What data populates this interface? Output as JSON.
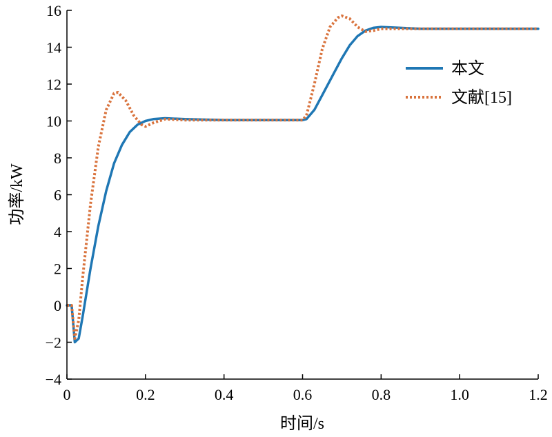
{
  "chart_data": {
    "type": "line",
    "title": "",
    "xlabel": "时间/s",
    "ylabel": "功率/kW",
    "xlim": [
      0,
      1.2
    ],
    "ylim": [
      -4,
      16
    ],
    "x_ticks": [
      0,
      0.2,
      0.4,
      0.6,
      0.8,
      1.0,
      1.2
    ],
    "x_tick_labels": [
      "0",
      "0.2",
      "0.4",
      "0.6",
      "0.8",
      "1.0",
      "1.2"
    ],
    "y_ticks": [
      -4,
      -2,
      0,
      2,
      4,
      6,
      8,
      10,
      12,
      14,
      16
    ],
    "y_tick_labels": [
      "−4",
      "−2",
      "0",
      "2",
      "4",
      "6",
      "8",
      "10",
      "12",
      "14",
      "16"
    ],
    "grid": false,
    "legend_position": "top-right",
    "series": [
      {
        "name": "本文",
        "color": "#1f77b4",
        "style": "solid",
        "x": [
          0,
          0.012,
          0.02,
          0.03,
          0.04,
          0.06,
          0.08,
          0.1,
          0.12,
          0.14,
          0.16,
          0.18,
          0.2,
          0.22,
          0.25,
          0.3,
          0.4,
          0.5,
          0.6,
          0.61,
          0.63,
          0.65,
          0.68,
          0.7,
          0.72,
          0.74,
          0.76,
          0.78,
          0.8,
          0.85,
          0.9,
          1.0,
          1.1,
          1.2
        ],
        "y": [
          0,
          0,
          -2.0,
          -1.8,
          -0.6,
          2.0,
          4.3,
          6.2,
          7.7,
          8.7,
          9.4,
          9.8,
          10.0,
          10.1,
          10.15,
          10.1,
          10.05,
          10.05,
          10.05,
          10.1,
          10.6,
          11.4,
          12.6,
          13.4,
          14.1,
          14.6,
          14.9,
          15.05,
          15.1,
          15.05,
          15.0,
          15.0,
          15.0,
          15.0
        ]
      },
      {
        "name": "文献[15]",
        "color": "#d9733d",
        "style": "dotted",
        "x": [
          0,
          0.012,
          0.02,
          0.03,
          0.04,
          0.06,
          0.08,
          0.1,
          0.12,
          0.13,
          0.15,
          0.17,
          0.19,
          0.2,
          0.22,
          0.25,
          0.3,
          0.4,
          0.5,
          0.6,
          0.61,
          0.63,
          0.65,
          0.67,
          0.69,
          0.7,
          0.72,
          0.74,
          0.76,
          0.78,
          0.8,
          0.85,
          0.9,
          1.0,
          1.1,
          1.2
        ],
        "y": [
          0,
          0,
          -1.8,
          -0.8,
          1.5,
          5.5,
          8.6,
          10.6,
          11.5,
          11.55,
          11.1,
          10.3,
          9.8,
          9.7,
          9.9,
          10.1,
          10.05,
          10.05,
          10.05,
          10.05,
          10.3,
          12.0,
          13.9,
          15.1,
          15.6,
          15.7,
          15.55,
          15.1,
          14.85,
          14.9,
          15.0,
          15.0,
          15.0,
          15.0,
          15.0,
          15.0
        ]
      }
    ]
  }
}
